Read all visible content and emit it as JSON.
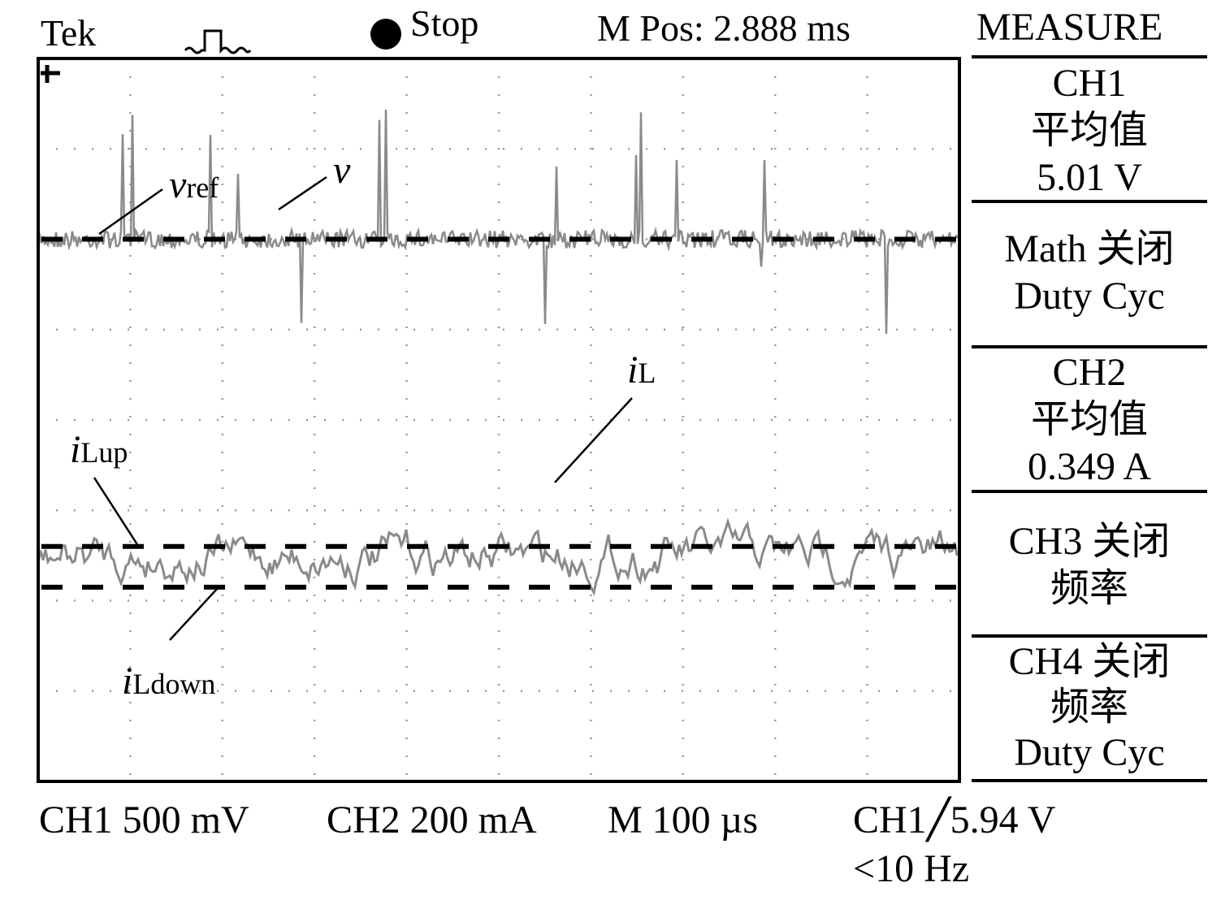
{
  "header": {
    "brand": "Tek",
    "trigger_icon": "pulse-icon",
    "status_icon": "filled-circle-icon",
    "status": "Stop",
    "m_pos": "M Pos: 2.888 ms"
  },
  "measure": {
    "title": "MEASURE",
    "panels": [
      {
        "lines": [
          "CH1",
          "平均值",
          "5.01 V"
        ]
      },
      {
        "lines": [
          "Math 关闭",
          "Duty Cyc"
        ]
      },
      {
        "lines": [
          "CH2",
          "平均值",
          "0.349 A"
        ]
      },
      {
        "lines": [
          "CH3 关闭",
          "频率"
        ]
      },
      {
        "lines": [
          "CH4  关闭",
          "频率",
          "Duty Cyc"
        ]
      }
    ]
  },
  "footer": {
    "ch1_scale": "CH1 500 mV",
    "ch2_scale": "CH2 200 mA",
    "time_scale": "M 100 µs",
    "trigger": "CH1",
    "trigger_level": "5.94 V",
    "trigger_freq": "<10 Hz"
  },
  "colors": {
    "trace": "#8a8a8a",
    "reference": "#000000",
    "grid": "#9a9a9a"
  },
  "chart_data": {
    "type": "line",
    "grid": true,
    "divisions": {
      "x": 10,
      "y": 8
    },
    "annotations": [
      {
        "text": "v",
        "sub": "ref"
      },
      {
        "text": "v",
        "sub": ""
      },
      {
        "text": "i",
        "sub": "L"
      },
      {
        "text": "i",
        "sub": "Lup"
      },
      {
        "text": "i",
        "sub": "Ldown"
      }
    ],
    "series": [
      {
        "name": "v",
        "channel": "CH1",
        "mean": 5.01,
        "unit": "V",
        "style": "noisy trace",
        "level_div": 2.0
      },
      {
        "name": "vref",
        "style": "dashed",
        "level_div": 2.0
      },
      {
        "name": "iL",
        "channel": "CH2",
        "mean": 0.349,
        "unit": "A",
        "style": "noisy triangular ripple",
        "level_div": 5.5
      },
      {
        "name": "iLup",
        "style": "dashed",
        "level_div": 5.4
      },
      {
        "name": "iLdown",
        "style": "dashed",
        "level_div": 5.85
      }
    ]
  }
}
